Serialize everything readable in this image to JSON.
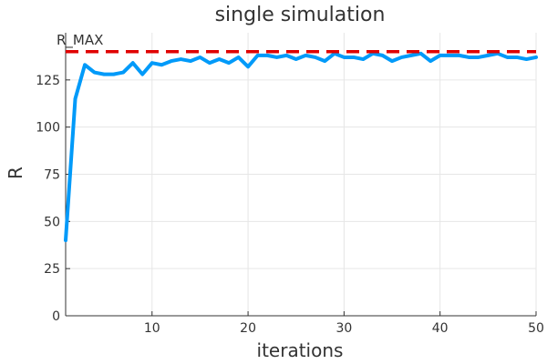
{
  "chart_data": {
    "type": "line",
    "title": "single simulation",
    "xlabel": "iterations",
    "ylabel": "R",
    "xlim": [
      1,
      50
    ],
    "ylim": [
      0,
      150
    ],
    "xticks": [
      10,
      20,
      30,
      40,
      50
    ],
    "yticks": [
      0,
      25,
      50,
      75,
      100,
      125
    ],
    "grid": true,
    "legend": "none",
    "series": [
      {
        "color": "#009AF9",
        "x": [
          1,
          2,
          3,
          4,
          5,
          6,
          7,
          8,
          9,
          10,
          11,
          12,
          13,
          14,
          15,
          16,
          17,
          18,
          19,
          20,
          21,
          22,
          23,
          24,
          25,
          26,
          27,
          28,
          29,
          30,
          31,
          32,
          33,
          34,
          35,
          36,
          37,
          38,
          39,
          40,
          41,
          42,
          43,
          44,
          45,
          46,
          47,
          48,
          49,
          50
        ],
        "values": [
          40,
          115,
          133,
          129,
          128,
          128,
          129,
          134,
          128,
          134,
          133,
          135,
          136,
          135,
          137,
          134,
          136,
          134,
          137,
          132,
          138,
          138,
          137,
          138,
          136,
          138,
          137,
          135,
          139,
          137,
          137,
          136,
          139,
          138,
          135,
          137,
          138,
          139,
          135,
          138,
          138,
          138,
          137,
          137,
          138,
          139,
          137,
          137,
          136,
          137
        ]
      }
    ],
    "reference_line": {
      "label": "R_MAX",
      "value": 140,
      "color": "#E00000"
    }
  }
}
